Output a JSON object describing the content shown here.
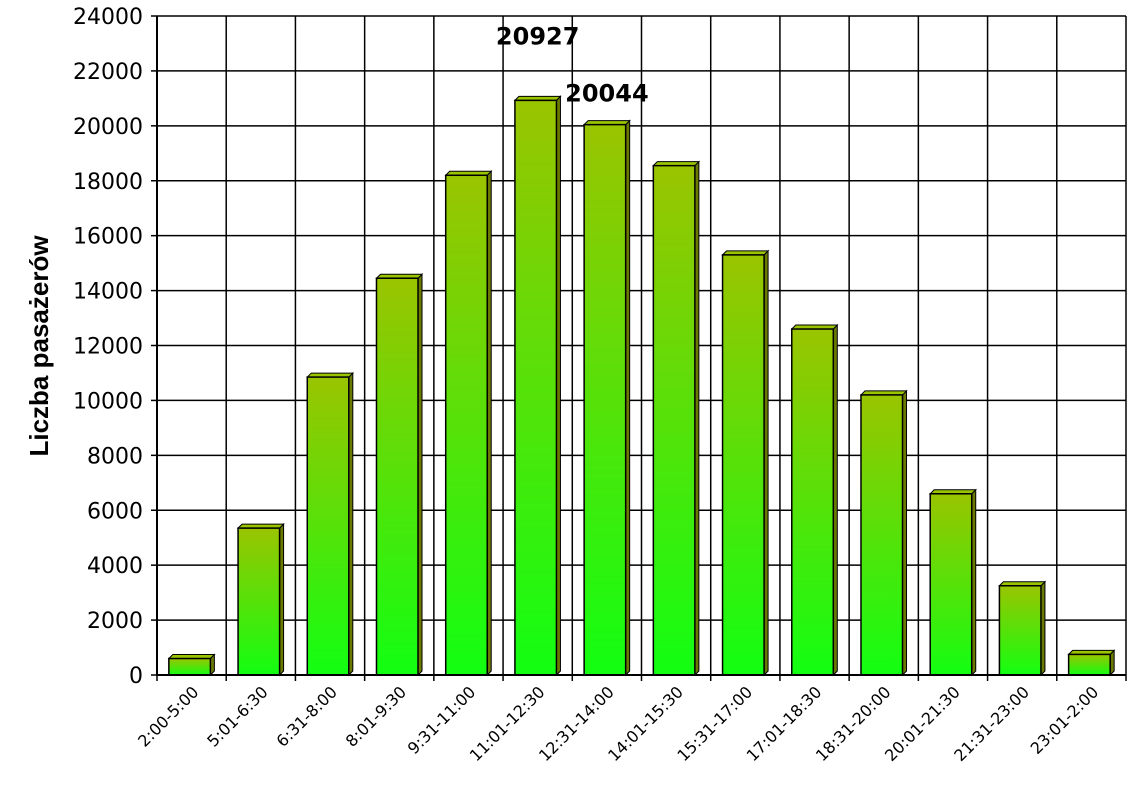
{
  "chart_data": {
    "type": "bar",
    "title": "",
    "xlabel": "",
    "ylabel": "Liczba pasażerów",
    "ylim": [
      0,
      24000
    ],
    "yticks": [
      0,
      2000,
      4000,
      6000,
      8000,
      10000,
      12000,
      14000,
      16000,
      18000,
      20000,
      22000,
      24000
    ],
    "grid": true,
    "legend": "none",
    "categories": [
      "2:00-5:00",
      "5:01-6:30",
      "6:31-8:00",
      "8:01-9:30",
      "9:31-11:00",
      "11:01-12:30",
      "12:31-14:00",
      "14:01-15:30",
      "15:31-17:00",
      "17:01-18:30",
      "18:31-20:00",
      "20:01-21:30",
      "21:31-23:00",
      "23:01-2:00"
    ],
    "values": [
      600,
      5350,
      10850,
      14450,
      18200,
      20927,
      20044,
      18550,
      15300,
      12600,
      10200,
      6600,
      3250,
      750
    ],
    "data_labels": [
      {
        "index": 5,
        "text": "20927"
      },
      {
        "index": 6,
        "text": "20044"
      }
    ],
    "colors": {
      "bar_top": "#9ac400",
      "bar_bottom": "#12ff12",
      "bar_outline": "#000000",
      "bar_side": "#6a7a00",
      "grid": "#000000"
    }
  }
}
